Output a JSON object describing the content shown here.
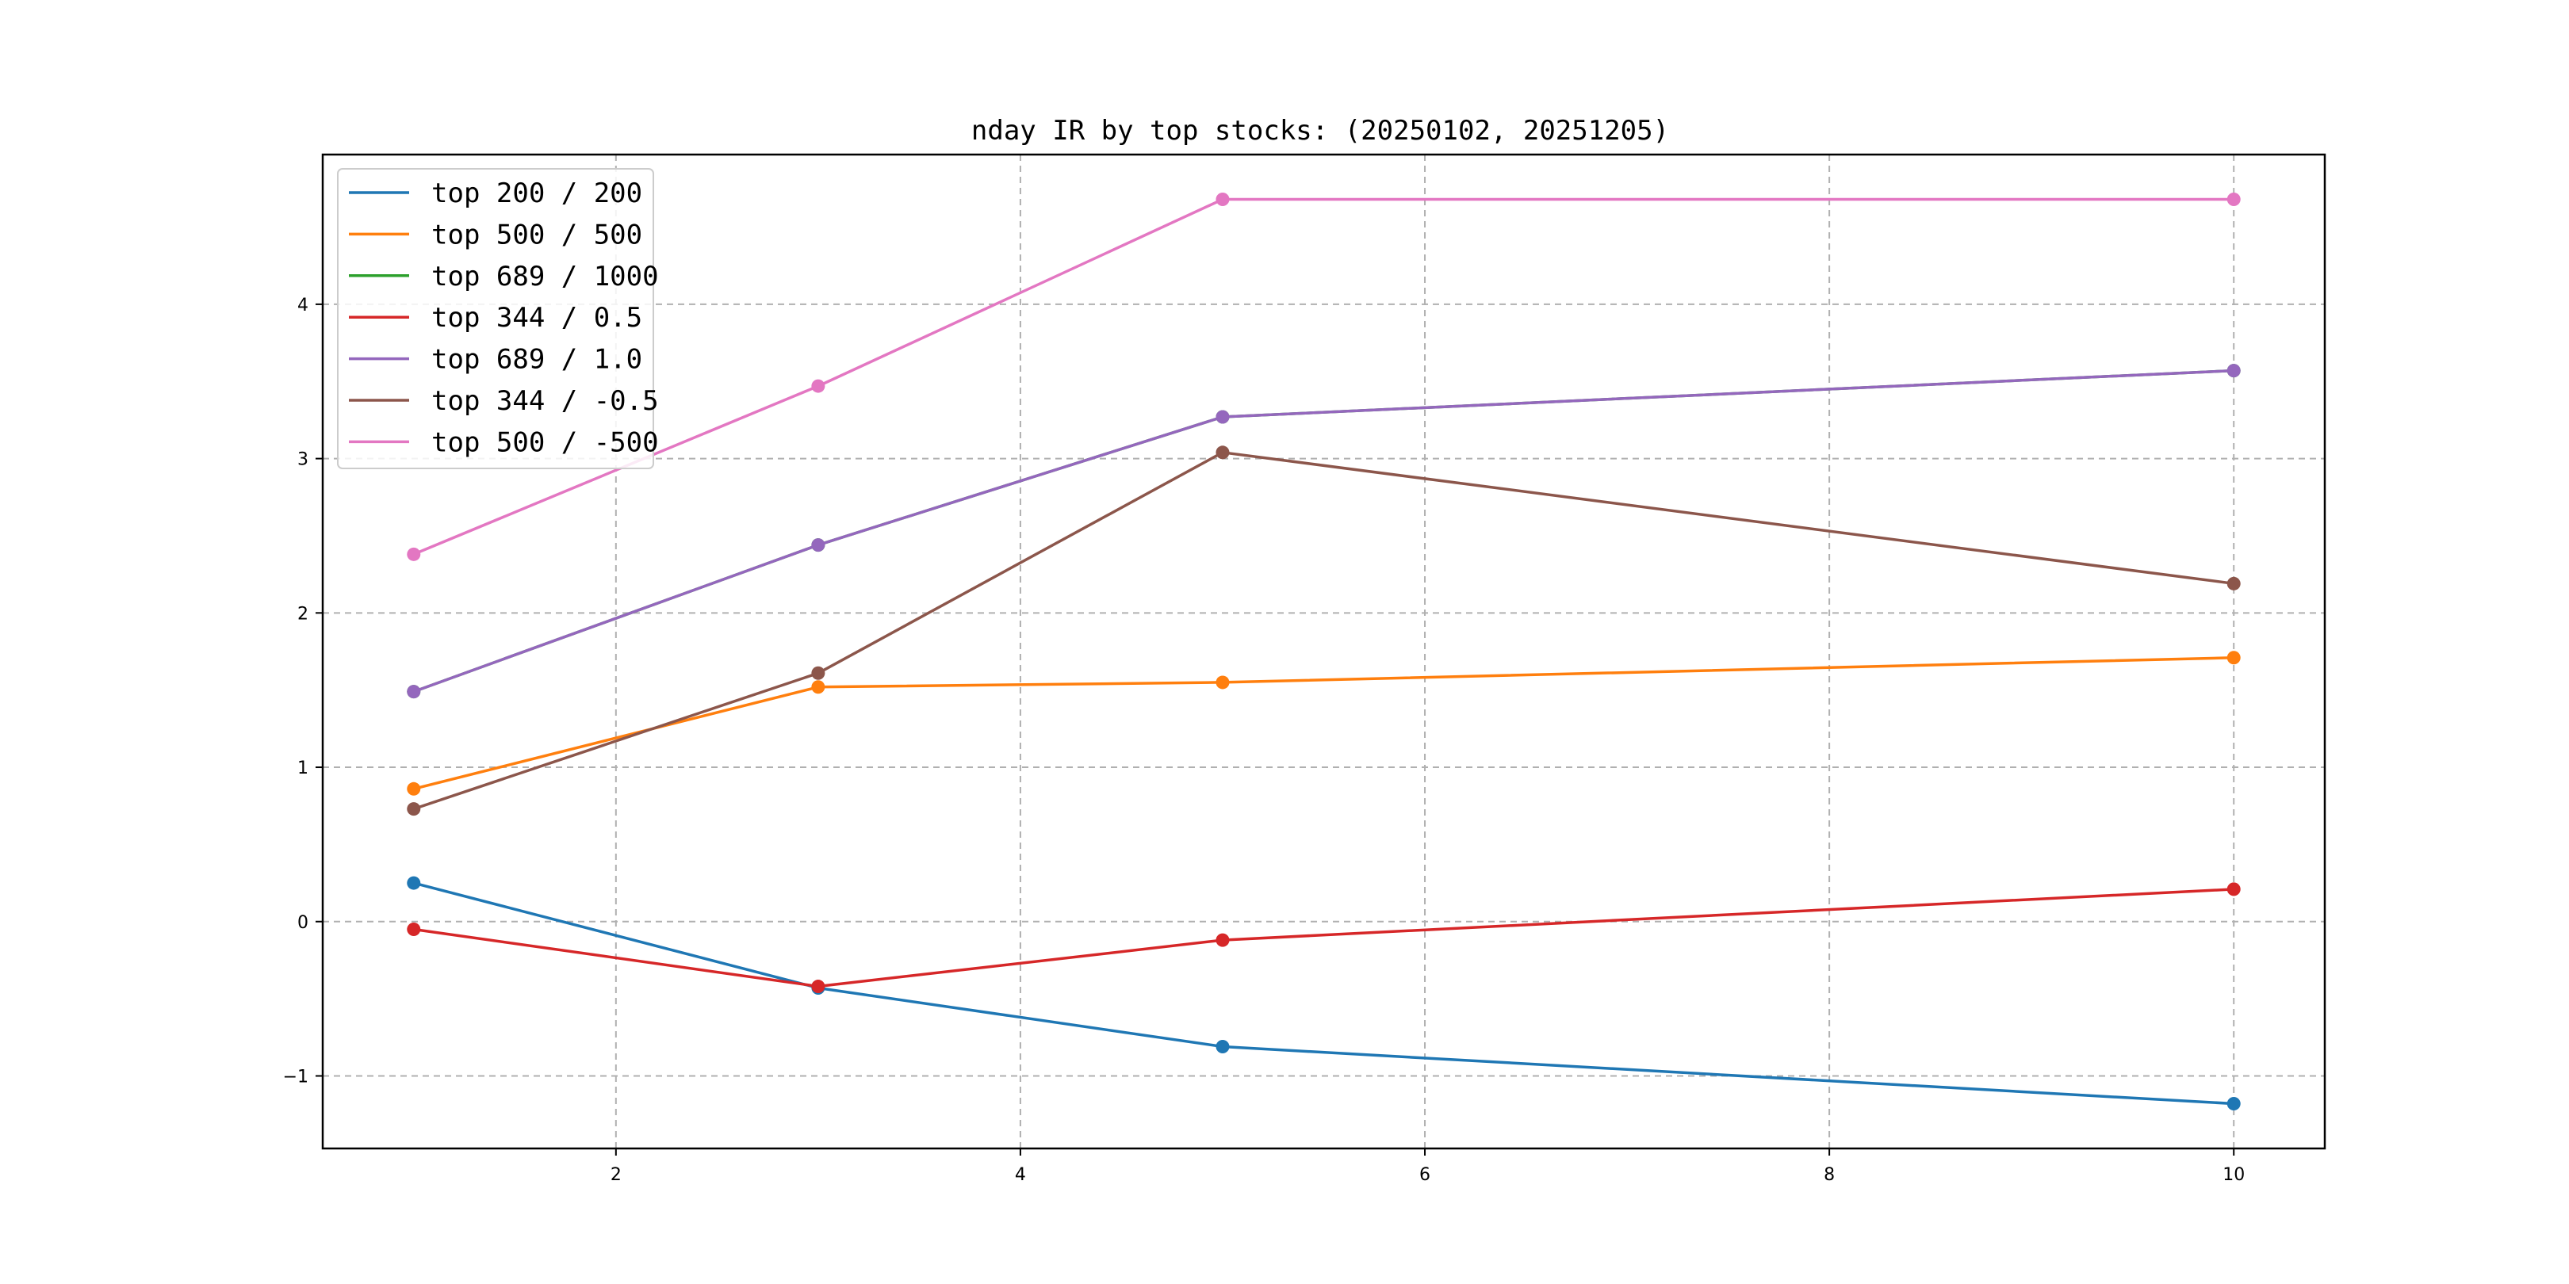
{
  "chart_data": {
    "type": "line",
    "title": "nday IR by top stocks: (20250102, 20251205)",
    "xlabel": "",
    "ylabel": "",
    "x": [
      1,
      3,
      5,
      10
    ],
    "xlim": [
      0.55,
      10.45
    ],
    "ylim": [
      -1.47,
      4.97
    ],
    "xticks": [
      2,
      4,
      6,
      8,
      10
    ],
    "yticks": [
      -1,
      0,
      1,
      2,
      3,
      4
    ],
    "xtick_labels": [
      "2",
      "4",
      "6",
      "8",
      "10"
    ],
    "ytick_labels": [
      "−1",
      "0",
      "1",
      "2",
      "3",
      "4"
    ],
    "grid": true,
    "legend_position": "top-left",
    "markers": true,
    "series": [
      {
        "name": "top 200 / 200",
        "color": "#1f77b4",
        "values": [
          0.25,
          -0.43,
          -0.81,
          -1.18
        ]
      },
      {
        "name": "top 500 / 500",
        "color": "#ff7f0e",
        "values": [
          0.86,
          1.52,
          1.55,
          1.71
        ]
      },
      {
        "name": "top 689 / 1000",
        "color": "#2ca02c",
        "values": [
          1.49,
          2.44,
          3.27,
          3.57
        ]
      },
      {
        "name": "top 344 / 0.5",
        "color": "#d62728",
        "values": [
          -0.05,
          -0.42,
          -0.12,
          0.21
        ]
      },
      {
        "name": "top 689 / 1.0",
        "color": "#9467bd",
        "values": [
          1.49,
          2.44,
          3.27,
          3.57
        ]
      },
      {
        "name": "top 344 / -0.5",
        "color": "#8c564b",
        "values": [
          0.73,
          1.61,
          3.04,
          2.19
        ]
      },
      {
        "name": "top 500 / -500",
        "color": "#e377c2",
        "values": [
          2.38,
          3.47,
          4.68,
          4.68
        ]
      }
    ]
  }
}
